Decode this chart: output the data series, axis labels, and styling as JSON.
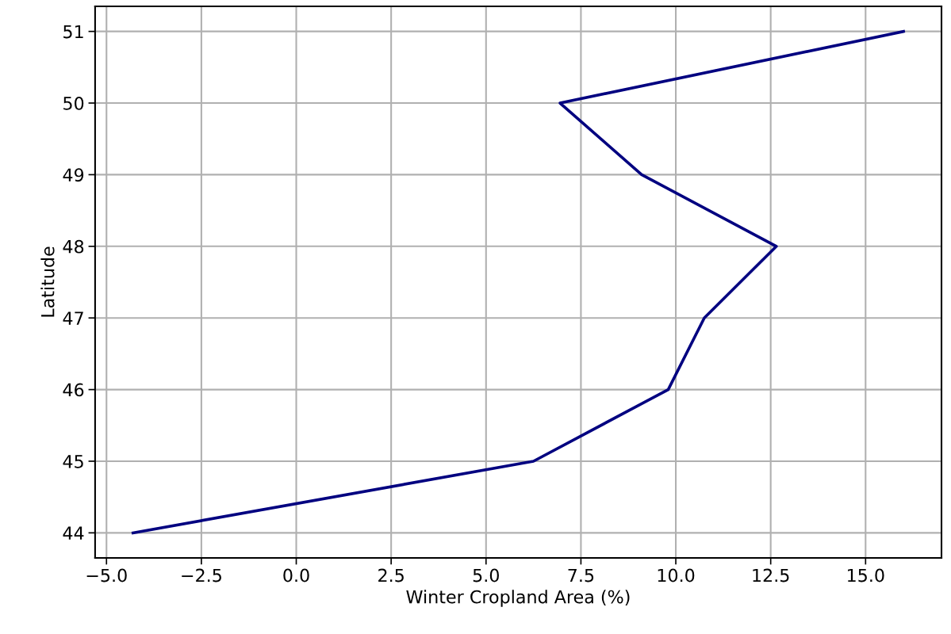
{
  "chart_data": {
    "type": "line",
    "xlabel": "Winter Cropland Area (%)",
    "ylabel": "Latitude",
    "x": [
      16.0,
      6.95,
      9.1,
      12.65,
      10.75,
      9.8,
      6.25,
      -4.3
    ],
    "series": [
      {
        "color": "#000080",
        "values": [
          51,
          50,
          49,
          48,
          47,
          46,
          45,
          44
        ]
      }
    ],
    "xlim": [
      -5.3,
      17.0
    ],
    "ylim": [
      43.65,
      51.35
    ],
    "xticks": [
      {
        "value": -5,
        "label": "−5.0"
      },
      {
        "value": -2.5,
        "label": "−2.5"
      },
      {
        "value": 0,
        "label": "0.0"
      },
      {
        "value": 2.5,
        "label": "2.5"
      },
      {
        "value": 5,
        "label": "5.0"
      },
      {
        "value": 7.5,
        "label": "7.5"
      },
      {
        "value": 10,
        "label": "10.0"
      },
      {
        "value": 12.5,
        "label": "12.5"
      },
      {
        "value": 15,
        "label": "15.0"
      }
    ],
    "yticks": [
      44,
      45,
      46,
      47,
      48,
      49,
      50,
      51
    ],
    "grid": true,
    "marker": "none",
    "line_style": "solid"
  }
}
